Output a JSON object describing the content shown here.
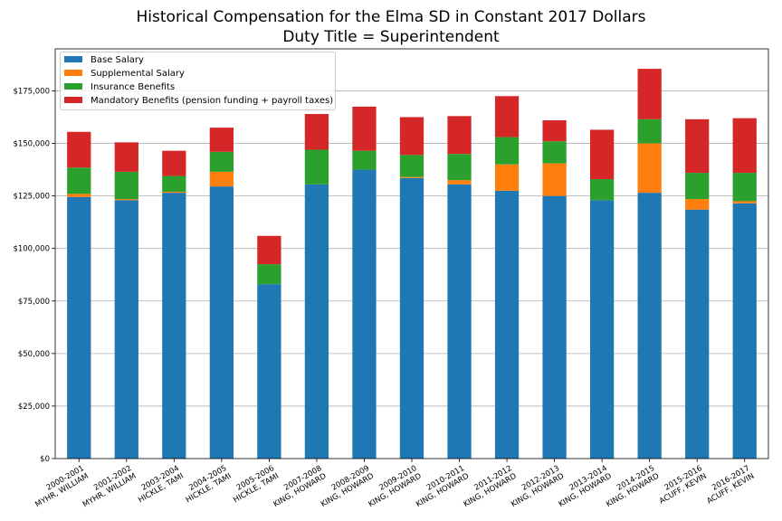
{
  "chart_data": {
    "type": "bar",
    "stacked": true,
    "title": "Historical Compensation for the Elma SD in Constant 2017 Dollars",
    "subtitle": "Duty Title = Superintendent",
    "xlabel": "",
    "ylabel": "",
    "ylim": [
      0,
      195000
    ],
    "yticks": [
      "$0",
      "$25,000",
      "$50,000",
      "$75,000",
      "$100,000",
      "$125,000",
      "$150,000",
      "$175,000"
    ],
    "ytick_values": [
      0,
      25000,
      50000,
      75000,
      100000,
      125000,
      150000,
      175000
    ],
    "grid": "horizontal",
    "legend_position": "top-left",
    "categories": [
      [
        "2000-2001",
        "MYHR, WILLIAM"
      ],
      [
        "2001-2002",
        "MYHR, WILLIAM"
      ],
      [
        "2003-2004",
        "HICKLE, TAMI"
      ],
      [
        "2004-2005",
        "HICKLE, TAMI"
      ],
      [
        "2005-2006",
        "HICKLE, TAMI"
      ],
      [
        "2007-2008",
        "KING, HOWARD"
      ],
      [
        "2008-2009",
        "KING, HOWARD"
      ],
      [
        "2009-2010",
        "KING, HOWARD"
      ],
      [
        "2010-2011",
        "KING, HOWARD"
      ],
      [
        "2011-2012",
        "KING, HOWARD"
      ],
      [
        "2012-2013",
        "KING, HOWARD"
      ],
      [
        "2013-2014",
        "KING, HOWARD"
      ],
      [
        "2014-2015",
        "KING, HOWARD"
      ],
      [
        "2015-2016",
        "ACUFF, KEVIN"
      ],
      [
        "2016-2017",
        "ACUFF, KEVIN"
      ]
    ],
    "series": [
      {
        "name": "Base Salary",
        "color": "#1f77b4",
        "values": [
          124500,
          123000,
          126500,
          129500,
          83000,
          130500,
          137500,
          133500,
          130500,
          127500,
          125000,
          123000,
          126500,
          118500,
          121500
        ]
      },
      {
        "name": "Supplemental Salary",
        "color": "#ff7f0e",
        "values": [
          1500,
          500,
          500,
          7000,
          0,
          0,
          0,
          500,
          2000,
          12500,
          15500,
          0,
          23500,
          5000,
          1000
        ]
      },
      {
        "name": "Insurance Benefits",
        "color": "#2ca02c",
        "values": [
          12500,
          13000,
          7500,
          9500,
          9500,
          16500,
          9000,
          10500,
          12500,
          13000,
          10500,
          10000,
          11500,
          12500,
          13500
        ]
      },
      {
        "name": "Mandatory Benefits (pension funding + payroll taxes)",
        "color": "#d62728",
        "values": [
          17000,
          14000,
          12000,
          11500,
          13500,
          17000,
          21000,
          18000,
          18000,
          19500,
          10000,
          23500,
          24000,
          25500,
          26000
        ]
      }
    ]
  }
}
